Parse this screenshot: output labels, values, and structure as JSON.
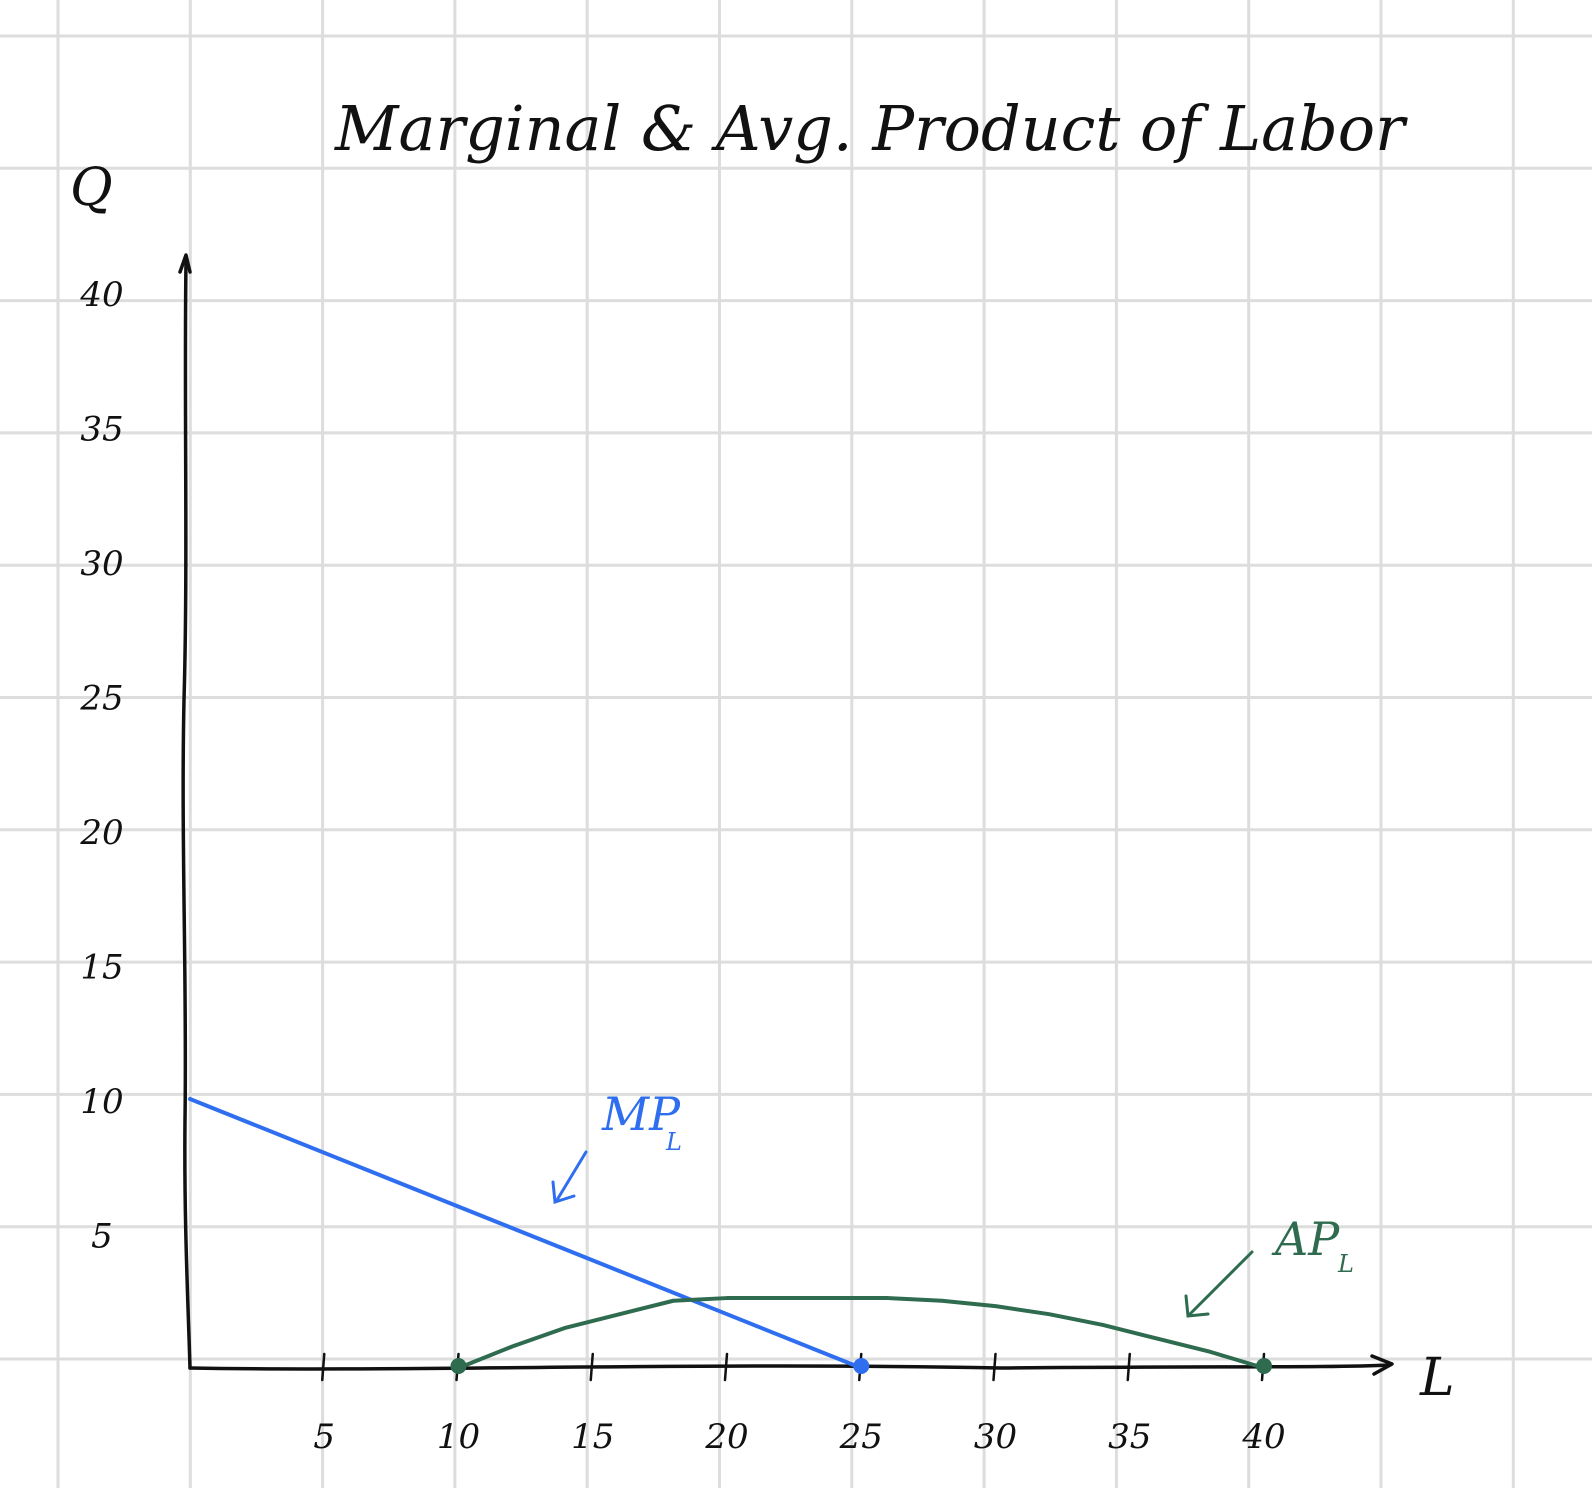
{
  "chart_data": {
    "type": "line",
    "title": "Marginal & Avg. Product of Labor",
    "ylabel": "Q",
    "xlabel": "L",
    "xlim": [
      0,
      45
    ],
    "ylim": [
      0,
      42
    ],
    "x_ticks": [
      5,
      10,
      15,
      20,
      25,
      30,
      35,
      40
    ],
    "x_tick_labels": [
      "5",
      "10",
      "15",
      "20",
      "25",
      "30",
      "35",
      "40"
    ],
    "y_ticks": [
      5,
      10,
      15,
      20,
      25,
      30,
      35,
      40
    ],
    "y_tick_labels": [
      "5",
      "10",
      "15",
      "20",
      "25",
      "30",
      "35",
      "40"
    ],
    "grid": true,
    "series": [
      {
        "name": "MPL",
        "color": "#2f6fef",
        "x": [
          0,
          5,
          10,
          15,
          20,
          25
        ],
        "y": [
          10,
          8,
          6,
          4,
          2,
          0
        ],
        "endpoint_x": 25,
        "endpoint_y": 0
      },
      {
        "name": "APL",
        "color": "#2e6b4f",
        "x": [
          10,
          12,
          14,
          16,
          18,
          20,
          22,
          24,
          26,
          28,
          30,
          32,
          34,
          36,
          38,
          40
        ],
        "y": [
          0,
          0.8,
          1.5,
          2.0,
          2.5,
          2.6,
          2.6,
          2.6,
          2.6,
          2.5,
          2.3,
          2.0,
          1.6,
          1.1,
          0.6,
          0
        ],
        "endpoints": [
          [
            10,
            0
          ],
          [
            40,
            0
          ]
        ]
      }
    ],
    "annotations": {
      "mpl_label": "MP",
      "mpl_sub": "L",
      "apl_label": "AP",
      "apl_sub": "L"
    }
  }
}
